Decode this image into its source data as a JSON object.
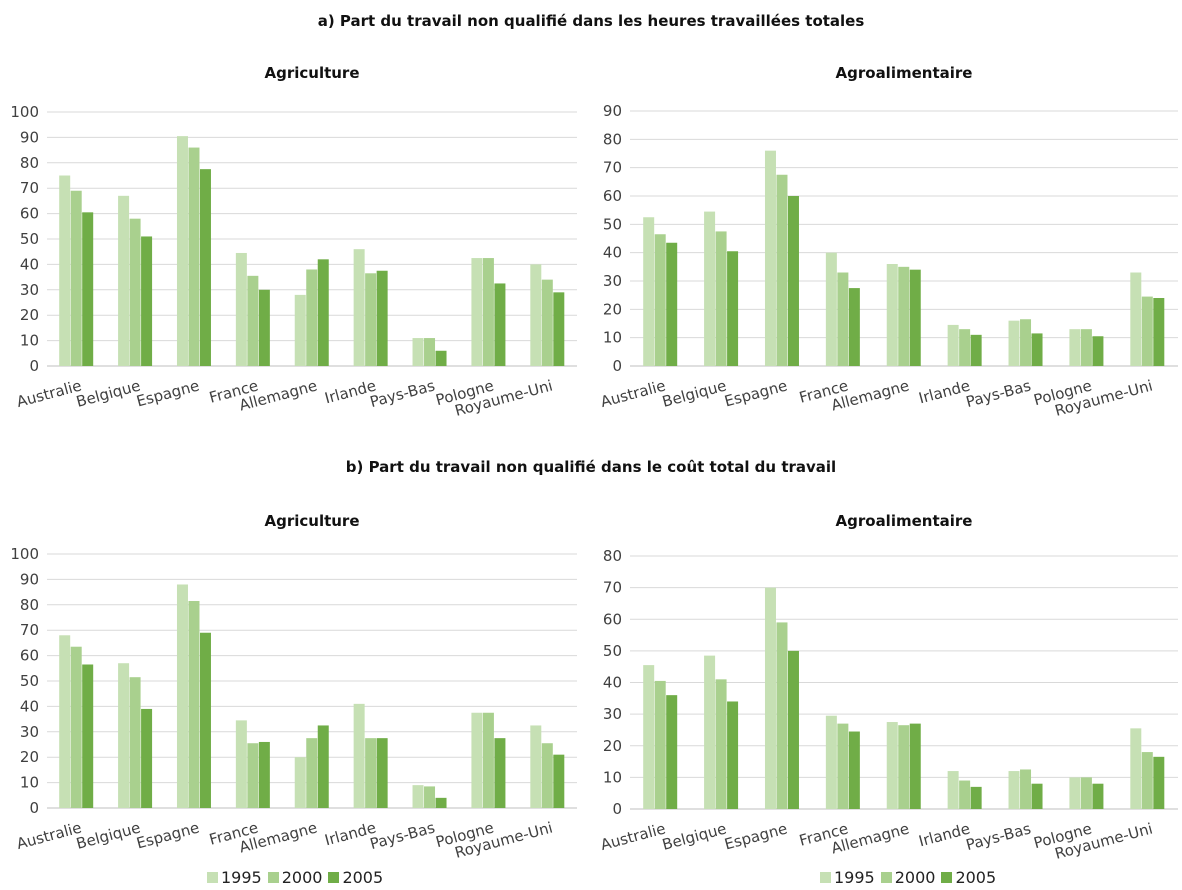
{
  "section_a_title": "a) Part du travail non qualifié dans les heures travaillées totales",
  "section_b_title": "b) Part du travail non qualifié dans le coût total du travail",
  "colors": {
    "1995": "#c6e0b4",
    "2000": "#a9d08e",
    "2005": "#70ad47",
    "grid": "#d9d9d9"
  },
  "legend": [
    "1995",
    "2000",
    "2005"
  ],
  "chart_data": [
    {
      "type": "bar",
      "title": "Agriculture",
      "categories": [
        "Australie",
        "Belgique",
        "Espagne",
        "France",
        "Allemagne",
        "Irlande",
        "Pays-Bas",
        "Pologne",
        "Royaume-Uni"
      ],
      "series": [
        {
          "name": "1995",
          "values": [
            75,
            67,
            90.5,
            44.5,
            28,
            46,
            11,
            42.5,
            40
          ]
        },
        {
          "name": "2000",
          "values": [
            69,
            58,
            86,
            35.5,
            38,
            36.5,
            11,
            42.5,
            34
          ]
        },
        {
          "name": "2005",
          "values": [
            60.5,
            51,
            77.5,
            30,
            42,
            37.5,
            6,
            32.5,
            29
          ]
        }
      ],
      "ylim": [
        0,
        100
      ],
      "yticks": [
        0,
        10,
        20,
        30,
        40,
        50,
        60,
        70,
        80,
        90,
        100
      ],
      "grid": true
    },
    {
      "type": "bar",
      "title": "Agroalimentaire",
      "categories": [
        "Australie",
        "Belgique",
        "Espagne",
        "France",
        "Allemagne",
        "Irlande",
        "Pays-Bas",
        "Pologne",
        "Royaume-Uni"
      ],
      "series": [
        {
          "name": "1995",
          "values": [
            52.5,
            54.5,
            76,
            40,
            36,
            14.5,
            16,
            13,
            33
          ]
        },
        {
          "name": "2000",
          "values": [
            46.5,
            47.5,
            67.5,
            33,
            35,
            13,
            16.5,
            13,
            24.5
          ]
        },
        {
          "name": "2005",
          "values": [
            43.5,
            40.5,
            60,
            27.5,
            34,
            11,
            11.5,
            10.5,
            24
          ]
        }
      ],
      "ylim": [
        0,
        90
      ],
      "yticks": [
        0,
        10,
        20,
        30,
        40,
        50,
        60,
        70,
        80,
        90
      ],
      "grid": true
    },
    {
      "type": "bar",
      "title": "Agriculture",
      "categories": [
        "Australie",
        "Belgique",
        "Espagne",
        "France",
        "Allemagne",
        "Irlande",
        "Pays-Bas",
        "Pologne",
        "Royaume-Uni"
      ],
      "series": [
        {
          "name": "1995",
          "values": [
            68,
            57,
            88,
            34.5,
            20,
            41,
            9,
            37.5,
            32.5
          ]
        },
        {
          "name": "2000",
          "values": [
            63.5,
            51.5,
            81.5,
            25.5,
            27.5,
            27.5,
            8.5,
            37.5,
            25.5
          ]
        },
        {
          "name": "2005",
          "values": [
            56.5,
            39,
            69,
            26,
            32.5,
            27.5,
            4,
            27.5,
            21
          ]
        }
      ],
      "ylim": [
        0,
        100
      ],
      "yticks": [
        0,
        10,
        20,
        30,
        40,
        50,
        60,
        70,
        80,
        90,
        100
      ],
      "grid": true
    },
    {
      "type": "bar",
      "title": "Agroalimentaire",
      "categories": [
        "Australie",
        "Belgique",
        "Espagne",
        "France",
        "Allemagne",
        "Irlande",
        "Pays-Bas",
        "Pologne",
        "Royaume-Uni"
      ],
      "series": [
        {
          "name": "1995",
          "values": [
            45.5,
            48.5,
            70,
            29.5,
            27.5,
            12,
            12,
            10,
            25.5
          ]
        },
        {
          "name": "2000",
          "values": [
            40.5,
            41,
            59,
            27,
            26.5,
            9,
            12.5,
            10,
            18
          ]
        },
        {
          "name": "2005",
          "values": [
            36,
            34,
            50,
            24.5,
            27,
            7,
            8,
            8,
            16.5
          ]
        }
      ],
      "ylim": [
        0,
        80
      ],
      "yticks": [
        0,
        10,
        20,
        30,
        40,
        50,
        60,
        70,
        80
      ],
      "grid": true
    }
  ]
}
